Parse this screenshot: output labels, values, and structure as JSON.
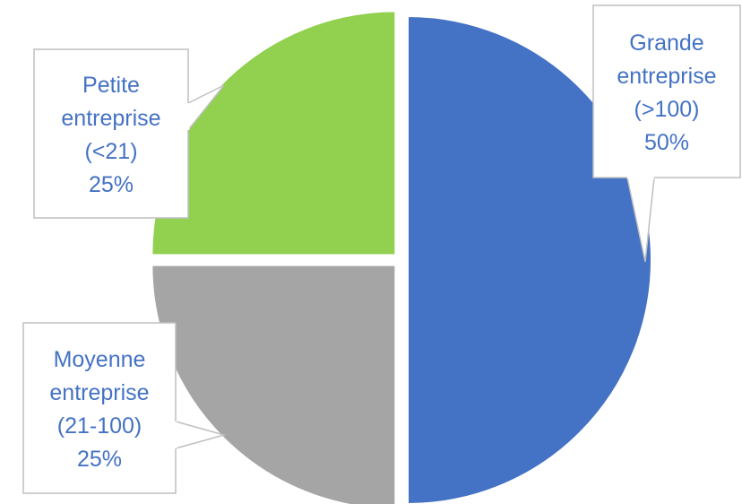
{
  "chart_data": {
    "type": "pie",
    "title": "",
    "start_angle_deg": 0,
    "direction": "clockwise",
    "slices": [
      {
        "key": "grande",
        "label_lines": [
          "Grande",
          "entreprise",
          "(>100)"
        ],
        "percent_label": "50%",
        "value": 50,
        "color": "#4472C4"
      },
      {
        "key": "moyenne",
        "label_lines": [
          "Moyenne",
          "entreprise",
          "(21-100)"
        ],
        "percent_label": "25%",
        "value": 25,
        "color": "#A5A5A5"
      },
      {
        "key": "petite",
        "label_lines": [
          "Petite",
          "entreprise",
          "(<21)"
        ],
        "percent_label": "25%",
        "value": 25,
        "color": "#92D050"
      }
    ],
    "label_color": "#4472C4",
    "label_border_color": "#BFBFBF",
    "separator_color": "#FFFFFF"
  }
}
